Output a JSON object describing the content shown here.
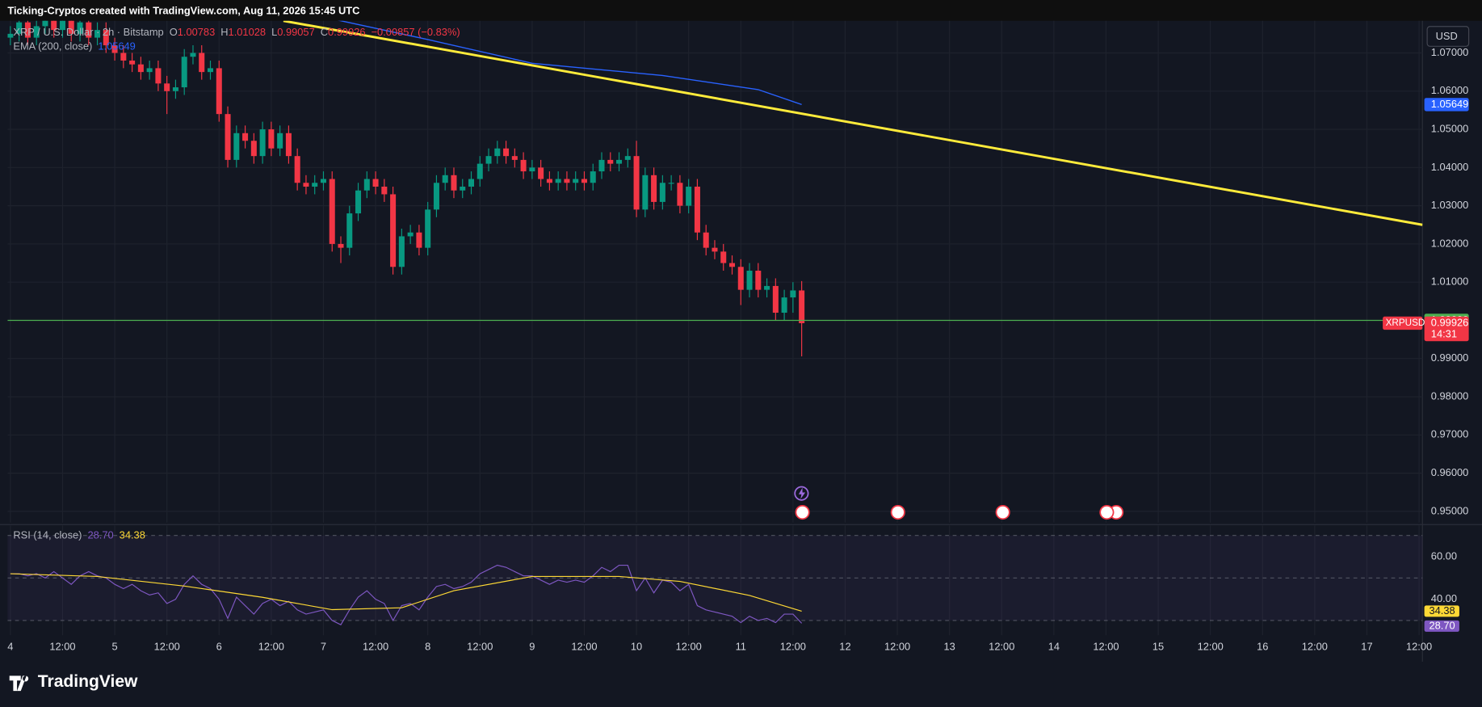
{
  "header": {
    "attribution": "Ticking-Cryptos created with TradingView.com, Aug 11, 2026 15:45 UTC",
    "symbol": "XRP / U.S. Dollar · 2h · Bitstamp",
    "ohlc": [
      {
        "key": "O",
        "value": "1.00783"
      },
      {
        "key": "H",
        "value": "1.01028"
      },
      {
        "key": "L",
        "value": "0.99057"
      },
      {
        "key": "C",
        "value": "0.99926"
      }
    ],
    "change": "−0.00857 (−0.83%)",
    "currency": "USD"
  },
  "chart_data": {
    "type": "candlestick",
    "up_color": "#089981",
    "down_color": "#f23645",
    "candles": {
      "open": [
        1.074,
        1.075,
        1.078,
        1.074,
        1.077,
        1.08,
        1.076,
        1.079,
        1.075,
        1.078,
        1.074,
        1.076,
        1.072,
        1.07,
        1.068,
        1.067,
        1.065,
        1.066,
        1.062,
        1.06,
        1.061,
        1.069,
        1.07,
        1.065,
        1.066,
        1.054,
        1.042,
        1.049,
        1.047,
        1.043,
        1.05,
        1.045,
        1.049,
        1.043,
        1.036,
        1.035,
        1.036,
        1.037,
        1.02,
        1.019,
        1.028,
        1.034,
        1.037,
        1.035,
        1.033,
        1.014,
        1.022,
        1.023,
        1.019,
        1.029,
        1.036,
        1.038,
        1.034,
        1.035,
        1.037,
        1.041,
        1.043,
        1.045,
        1.043,
        1.042,
        1.039,
        1.04,
        1.037,
        1.036,
        1.037,
        1.036,
        1.037,
        1.036,
        1.039,
        1.042,
        1.041,
        1.042,
        1.043,
        1.029,
        1.038,
        1.031,
        1.036,
        1.036,
        1.03,
        1.035,
        1.023,
        1.019,
        1.018,
        1.015,
        1.014,
        1.008,
        1.013,
        1.008,
        1.009,
        1.002,
        1.006,
        1.00783
      ],
      "high": [
        1.077,
        1.08,
        1.08,
        1.079,
        1.082,
        1.082,
        1.081,
        1.081,
        1.08,
        1.08,
        1.078,
        1.078,
        1.074,
        1.072,
        1.07,
        1.069,
        1.068,
        1.068,
        1.064,
        1.063,
        1.071,
        1.072,
        1.072,
        1.068,
        1.068,
        1.056,
        1.051,
        1.051,
        1.049,
        1.052,
        1.052,
        1.051,
        1.051,
        1.045,
        1.038,
        1.038,
        1.039,
        1.039,
        1.022,
        1.03,
        1.036,
        1.039,
        1.039,
        1.037,
        1.035,
        1.024,
        1.025,
        1.025,
        1.031,
        1.038,
        1.04,
        1.04,
        1.037,
        1.039,
        1.043,
        1.045,
        1.047,
        1.047,
        1.045,
        1.044,
        1.042,
        1.042,
        1.039,
        1.039,
        1.039,
        1.039,
        1.039,
        1.041,
        1.044,
        1.044,
        1.044,
        1.045,
        1.047,
        1.04,
        1.04,
        1.038,
        1.038,
        1.038,
        1.037,
        1.037,
        1.025,
        1.021,
        1.02,
        1.017,
        1.016,
        1.015,
        1.015,
        1.011,
        1.011,
        1.008,
        1.01,
        1.01028
      ],
      "low": [
        1.072,
        1.073,
        1.072,
        1.072,
        1.075,
        1.074,
        1.074,
        1.073,
        1.073,
        1.072,
        1.072,
        1.07,
        1.068,
        1.066,
        1.065,
        1.063,
        1.063,
        1.06,
        1.054,
        1.058,
        1.059,
        1.067,
        1.063,
        1.063,
        1.052,
        1.04,
        1.04,
        1.045,
        1.041,
        1.041,
        1.043,
        1.043,
        1.041,
        1.034,
        1.033,
        1.033,
        1.034,
        1.018,
        1.015,
        1.017,
        1.026,
        1.032,
        1.033,
        1.031,
        1.012,
        1.012,
        1.02,
        1.017,
        1.017,
        1.027,
        1.034,
        1.032,
        1.032,
        1.033,
        1.035,
        1.039,
        1.041,
        1.041,
        1.04,
        1.037,
        1.037,
        1.035,
        1.034,
        1.034,
        1.034,
        1.034,
        1.034,
        1.034,
        1.037,
        1.039,
        1.039,
        1.04,
        1.027,
        1.027,
        1.029,
        1.029,
        1.034,
        1.028,
        1.028,
        1.021,
        1.017,
        1.016,
        1.013,
        1.012,
        1.004,
        1.006,
        1.006,
        1.006,
        1.0,
        1.0,
        1.002,
        0.99057
      ],
      "close": [
        1.075,
        1.078,
        1.074,
        1.077,
        1.08,
        1.076,
        1.079,
        1.075,
        1.078,
        1.074,
        1.076,
        1.072,
        1.07,
        1.068,
        1.067,
        1.065,
        1.066,
        1.062,
        1.06,
        1.061,
        1.069,
        1.07,
        1.065,
        1.066,
        1.054,
        1.042,
        1.049,
        1.047,
        1.043,
        1.05,
        1.045,
        1.049,
        1.043,
        1.036,
        1.035,
        1.036,
        1.037,
        1.02,
        1.019,
        1.028,
        1.034,
        1.037,
        1.035,
        1.033,
        1.014,
        1.022,
        1.023,
        1.019,
        1.029,
        1.036,
        1.038,
        1.034,
        1.035,
        1.037,
        1.041,
        1.043,
        1.045,
        1.043,
        1.042,
        1.039,
        1.04,
        1.037,
        1.036,
        1.037,
        1.036,
        1.037,
        1.036,
        1.039,
        1.042,
        1.041,
        1.042,
        1.043,
        1.029,
        1.038,
        1.031,
        1.036,
        1.036,
        1.03,
        1.035,
        1.023,
        1.019,
        1.018,
        1.015,
        1.014,
        1.008,
        1.013,
        1.008,
        1.009,
        1.002,
        1.006,
        1.00783,
        0.99926
      ]
    },
    "ylim": [
      0.94704,
      1.07841
    ],
    "yticks": [
      {
        "value": 0.95,
        "label": "0.95000"
      },
      {
        "value": 0.96,
        "label": "0.96000"
      },
      {
        "value": 0.97,
        "label": "0.97000"
      },
      {
        "value": 0.98,
        "label": "0.98000"
      },
      {
        "value": 0.99,
        "label": "0.99000"
      },
      {
        "value": 1.0,
        "label": "1.00000"
      },
      {
        "value": 1.01,
        "label": "1.01000"
      },
      {
        "value": 1.02,
        "label": "1.02000"
      },
      {
        "value": 1.03,
        "label": "1.03000"
      },
      {
        "value": 1.04,
        "label": "1.04000"
      },
      {
        "value": 1.05,
        "label": "1.05000"
      },
      {
        "value": 1.06,
        "label": "1.06000"
      },
      {
        "value": 1.07,
        "label": "1.07000"
      }
    ],
    "xticks": [
      {
        "value": 0,
        "label": "4"
      },
      {
        "value": 6,
        "label": "12:00"
      },
      {
        "value": 12,
        "label": "5"
      },
      {
        "value": 18,
        "label": "12:00"
      },
      {
        "value": 24,
        "label": "6"
      },
      {
        "value": 30,
        "label": "12:00"
      },
      {
        "value": 36,
        "label": "7"
      },
      {
        "value": 42,
        "label": "12:00"
      },
      {
        "value": 48,
        "label": "8"
      },
      {
        "value": 54,
        "label": "12:00"
      },
      {
        "value": 60,
        "label": "9"
      },
      {
        "value": 66,
        "label": "12:00"
      },
      {
        "value": 72,
        "label": "10"
      },
      {
        "value": 78,
        "label": "12:00"
      },
      {
        "value": 84,
        "label": "11"
      },
      {
        "value": 90,
        "label": "12:00"
      },
      {
        "value": 96,
        "label": "12"
      },
      {
        "value": 102,
        "label": "12:00"
      },
      {
        "value": 108,
        "label": "13"
      },
      {
        "value": 114,
        "label": "12:00"
      },
      {
        "value": 120,
        "label": "14"
      },
      {
        "value": 126,
        "label": "12:00"
      },
      {
        "value": 132,
        "label": "15"
      },
      {
        "value": 138,
        "label": "12:00"
      },
      {
        "value": 144,
        "label": "16"
      },
      {
        "value": 150,
        "label": "12:00"
      },
      {
        "value": 156,
        "label": "17"
      },
      {
        "value": 162,
        "label": "12:00"
      }
    ],
    "grid": true,
    "ema": {
      "name": "EMA (200, close)",
      "color": "#2962ff",
      "value_label": "1.05649",
      "x": [
        36,
        48,
        60,
        75,
        86,
        91
      ],
      "values": [
        1.0794,
        1.0735,
        1.0673,
        1.0641,
        1.0604,
        1.05649
      ]
    },
    "trendline": {
      "color": "#ffeb3b",
      "x": [
        31.4,
        162.4
      ],
      "values": [
        1.0784,
        1.025
      ]
    },
    "hline": {
      "color": "#4caf50",
      "value": 1.0,
      "label": "1.00000"
    },
    "last_price": {
      "symbol": "XRPUSD",
      "label": "0.99926",
      "countdown": "14:31"
    },
    "rsi": {
      "name": "RSI (14, close)",
      "color": "#7e57c2",
      "value_label": "28.70",
      "ylim": [
        23.1,
        74.67
      ],
      "yticks": [
        {
          "value": 60,
          "label": "60.00"
        },
        {
          "value": 40,
          "label": "40.00"
        }
      ],
      "bands": [
        70,
        50,
        30
      ],
      "values": [
        52,
        52,
        51,
        52,
        50,
        53,
        50,
        47,
        51,
        53,
        51,
        50,
        47,
        45,
        47,
        44,
        42,
        43,
        38,
        40,
        47,
        51,
        47,
        45,
        40,
        31,
        41,
        37,
        33,
        38,
        40,
        37,
        39,
        35,
        33,
        34,
        35,
        30,
        28,
        35,
        41,
        44,
        40,
        38,
        30,
        37,
        38,
        35,
        41,
        46,
        47,
        45,
        46,
        48,
        52,
        54,
        56,
        55,
        53,
        51,
        51,
        49,
        47,
        49,
        48,
        49,
        48,
        51,
        55,
        53,
        56,
        56,
        44,
        50,
        43,
        49,
        48,
        44,
        47,
        37,
        35,
        34,
        33,
        32,
        29,
        32,
        30,
        31,
        29,
        33,
        33,
        28.7
      ],
      "ma": {
        "color": "#fdd835",
        "value_label": "34.38",
        "x": [
          0,
          10,
          20,
          29,
          37,
          45,
          51,
          60,
          70,
          77,
          85,
          91
        ],
        "values": [
          52,
          50.7,
          46.2,
          40.9,
          35.1,
          36,
          44,
          50.7,
          50.7,
          48.4,
          41.8,
          34.38
        ]
      }
    }
  },
  "footer": {
    "brand": "TradingView"
  }
}
